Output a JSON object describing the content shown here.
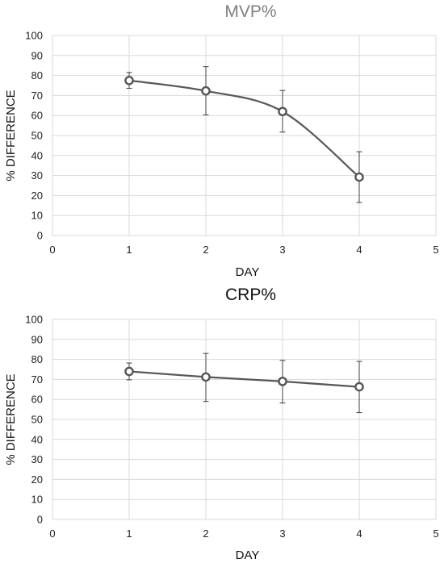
{
  "chart_data": [
    {
      "type": "line",
      "title": "MVP%",
      "title_color": "#7f7f7f",
      "xlabel": "DAY",
      "ylabel": "% DIFFERENCE",
      "xlim": [
        0,
        5
      ],
      "ylim": [
        0,
        100
      ],
      "x_ticks": [
        "0",
        "1",
        "2",
        "3",
        "4",
        "5"
      ],
      "y_ticks": [
        "0",
        "10",
        "20",
        "30",
        "40",
        "50",
        "60",
        "70",
        "80",
        "90",
        "100"
      ],
      "grid": true,
      "smooth": true,
      "line_color": "#595959",
      "series": [
        {
          "x": [
            1,
            2,
            3,
            4
          ],
          "y": [
            77.5,
            72.3,
            62,
            29.2
          ],
          "err_low": [
            73.6,
            60.3,
            51.7,
            16.5
          ],
          "err_high": [
            81.5,
            84.4,
            72.5,
            41.9
          ]
        }
      ]
    },
    {
      "type": "line",
      "title": "CRP%",
      "title_color": "#111111",
      "xlabel": "DAY",
      "ylabel": "% DIFFERENCE",
      "xlim": [
        0,
        5
      ],
      "ylim": [
        0,
        100
      ],
      "x_ticks": [
        "0",
        "1",
        "2",
        "3",
        "4",
        "5"
      ],
      "y_ticks": [
        "0",
        "10",
        "20",
        "30",
        "40",
        "50",
        "60",
        "70",
        "80",
        "90",
        "100"
      ],
      "grid": true,
      "smooth": false,
      "line_color": "#595959",
      "series": [
        {
          "x": [
            1,
            2,
            3,
            4
          ],
          "y": [
            74,
            71.2,
            69,
            66.3
          ],
          "err_low": [
            69.8,
            59,
            58.2,
            53.4
          ],
          "err_high": [
            78.2,
            83,
            79.5,
            79
          ]
        }
      ]
    }
  ]
}
